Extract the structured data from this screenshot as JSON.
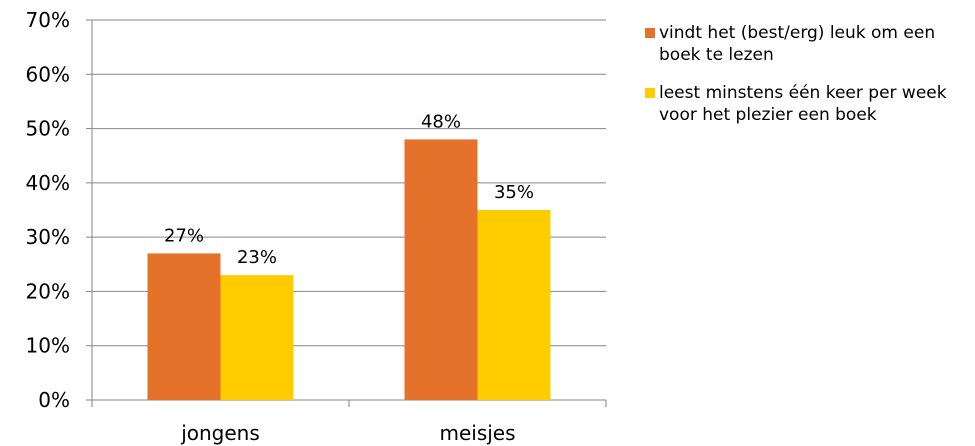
{
  "chart_data": {
    "type": "bar",
    "categories": [
      "jongens",
      "meisjes"
    ],
    "series": [
      {
        "name": "vindt het (best/erg) leuk om een boek te lezen",
        "values": [
          27,
          48
        ],
        "labels": [
          "27%",
          "48%"
        ],
        "color": "#E4722B"
      },
      {
        "name": "leest minstens één keer per week voor het plezier een boek",
        "values": [
          23,
          35
        ],
        "labels": [
          "23%",
          "35%"
        ],
        "color": "#FFCC00"
      }
    ],
    "ylim": [
      0,
      70
    ],
    "yticks": [
      "0%",
      "10%",
      "20%",
      "30%",
      "40%",
      "50%",
      "60%",
      "70%"
    ],
    "grid": true,
    "legend_position": "right",
    "xlabel": "",
    "ylabel": ""
  }
}
